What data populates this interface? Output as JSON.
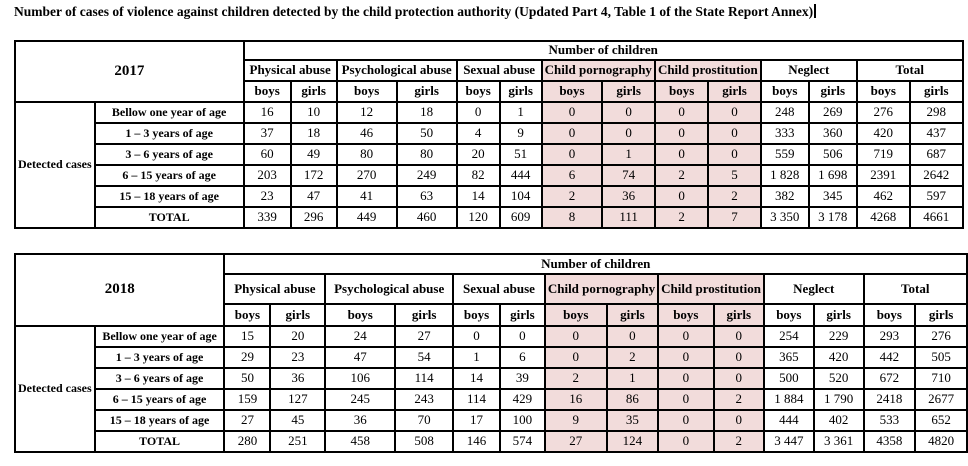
{
  "title": "Number of cases of violence against children detected by the child protection authority (Updated Part 4, Table 1 of the State Report Annex)",
  "colors": {
    "highlight": "#f2dcdb",
    "border": "#000000",
    "background": "#ffffff"
  },
  "tables": [
    {
      "year": "2017",
      "row_group_label": "Detected cases",
      "header": {
        "number_of_children": "Number of children",
        "categories": [
          "Physical abuse",
          "Psychological abuse",
          "Sexual abuse",
          "Child pornography",
          "Child prostitution",
          "Neglect",
          "Total"
        ],
        "highlighted_categories": [
          3,
          4
        ],
        "subheaders": [
          "boys",
          "girls"
        ]
      },
      "rows": [
        {
          "label": "Bellow one year of age",
          "values": [
            "16",
            "10",
            "12",
            "18",
            "0",
            "1",
            "0",
            "0",
            "0",
            "0",
            "248",
            "269",
            "276",
            "298"
          ]
        },
        {
          "label": "1 – 3 years of age",
          "values": [
            "37",
            "18",
            "46",
            "50",
            "4",
            "9",
            "0",
            "0",
            "0",
            "0",
            "333",
            "360",
            "420",
            "437"
          ]
        },
        {
          "label": "3 – 6 years of age",
          "values": [
            "60",
            "49",
            "80",
            "80",
            "20",
            "51",
            "0",
            "1",
            "0",
            "0",
            "559",
            "506",
            "719",
            "687"
          ]
        },
        {
          "label": "6 – 15 years of age",
          "values": [
            "203",
            "172",
            "270",
            "249",
            "82",
            "444",
            "6",
            "74",
            "2",
            "5",
            "1 828",
            "1 698",
            "2391",
            "2642"
          ]
        },
        {
          "label": "15 – 18 years of age",
          "values": [
            "23",
            "47",
            "41",
            "63",
            "14",
            "104",
            "2",
            "36",
            "0",
            "2",
            "382",
            "345",
            "462",
            "597"
          ]
        },
        {
          "label": "TOTAL",
          "values": [
            "339",
            "296",
            "449",
            "460",
            "120",
            "609",
            "8",
            "111",
            "2",
            "7",
            "3 350",
            "3 178",
            "4268",
            "4661"
          ]
        }
      ]
    },
    {
      "year": "2018",
      "row_group_label": "Detected cases",
      "header": {
        "number_of_children": "Number of children",
        "categories": [
          "Physical abuse",
          "Psychological abuse",
          "Sexual abuse",
          "Child pornography",
          "Child prostitution",
          "Neglect",
          "Total"
        ],
        "highlighted_categories": [
          3,
          4
        ],
        "subheaders": [
          "boys",
          "girls"
        ]
      },
      "rows": [
        {
          "label": "Bellow one year of age",
          "values": [
            "15",
            "20",
            "24",
            "27",
            "0",
            "0",
            "0",
            "0",
            "0",
            "0",
            "254",
            "229",
            "293",
            "276"
          ]
        },
        {
          "label": "1 – 3 years of age",
          "values": [
            "29",
            "23",
            "47",
            "54",
            "1",
            "6",
            "0",
            "2",
            "0",
            "0",
            "365",
            "420",
            "442",
            "505"
          ]
        },
        {
          "label": "3 – 6 years of age",
          "values": [
            "50",
            "36",
            "106",
            "114",
            "14",
            "39",
            "2",
            "1",
            "0",
            "0",
            "500",
            "520",
            "672",
            "710"
          ]
        },
        {
          "label": "6 – 15 years of age",
          "values": [
            "159",
            "127",
            "245",
            "243",
            "114",
            "429",
            "16",
            "86",
            "0",
            "2",
            "1 884",
            "1 790",
            "2418",
            "2677"
          ]
        },
        {
          "label": "15 – 18 years of age",
          "values": [
            "27",
            "45",
            "36",
            "70",
            "17",
            "100",
            "9",
            "35",
            "0",
            "0",
            "444",
            "402",
            "533",
            "652"
          ]
        },
        {
          "label": "TOTAL",
          "values": [
            "280",
            "251",
            "458",
            "508",
            "146",
            "574",
            "27",
            "124",
            "0",
            "2",
            "3 447",
            "3 361",
            "4358",
            "4820"
          ]
        }
      ]
    }
  ]
}
